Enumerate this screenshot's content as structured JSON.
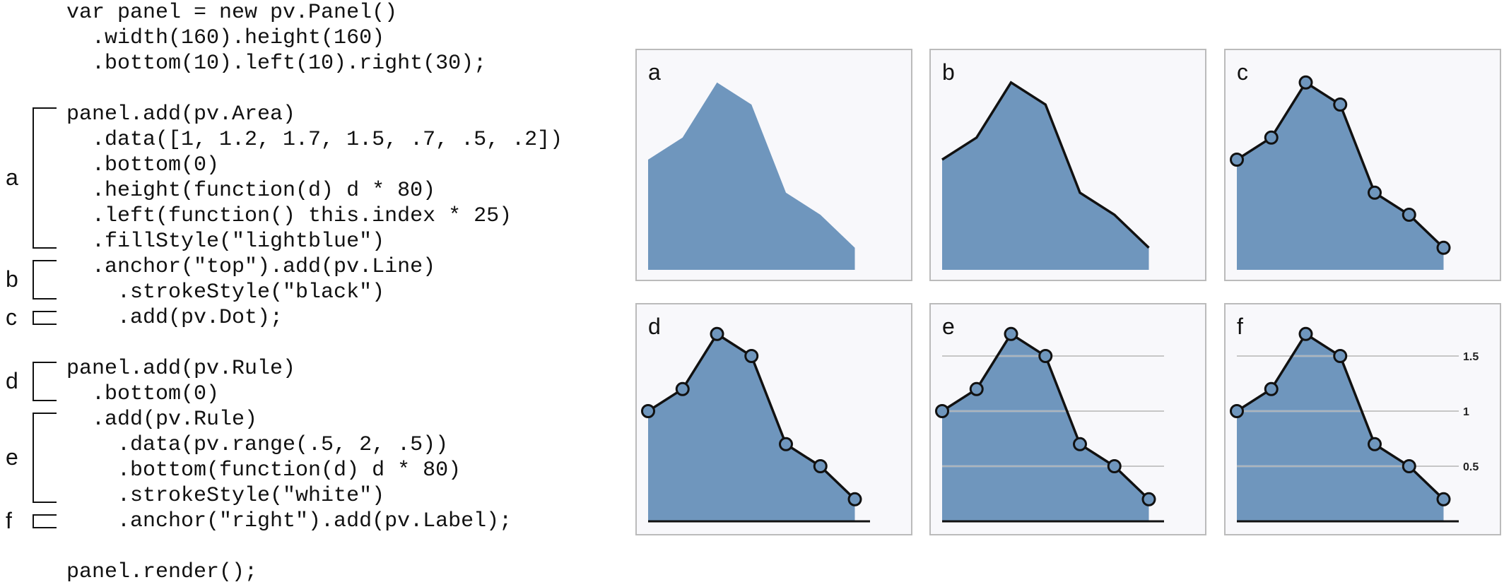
{
  "code": {
    "lines": [
      "var panel = new pv.Panel()",
      "  .width(160).height(160)",
      "  .bottom(10).left(10).right(30);",
      "",
      "panel.add(pv.Area)",
      "  .data([1, 1.2, 1.7, 1.5, .7, .5, .2])",
      "  .bottom(0)",
      "  .height(function(d) d * 80)",
      "  .left(function() this.index * 25)",
      "  .fillStyle(\"lightblue\")",
      "  .anchor(\"top\").add(pv.Line)",
      "    .strokeStyle(\"black\")",
      "    .add(pv.Dot);",
      "",
      "panel.add(pv.Rule)",
      "  .bottom(0)",
      "  .add(pv.Rule)",
      "    .data(pv.range(.5, 2, .5))",
      "    .bottom(function(d) d * 80)",
      "    .strokeStyle(\"white\")",
      "    .anchor(\"right\").add(pv.Label);",
      "",
      "panel.render();"
    ]
  },
  "brackets": [
    {
      "label": "a",
      "from_line": 4,
      "to_line": 9
    },
    {
      "label": "b",
      "from_line": 10,
      "to_line": 11
    },
    {
      "label": "c",
      "from_line": 12,
      "to_line": 12
    },
    {
      "label": "d",
      "from_line": 14,
      "to_line": 15
    },
    {
      "label": "e",
      "from_line": 16,
      "to_line": 19
    },
    {
      "label": "f",
      "from_line": 20,
      "to_line": 20
    }
  ],
  "panels": [
    {
      "label": "a",
      "line": false,
      "dots": false,
      "baseline": false,
      "rules": false,
      "rule_labels": false
    },
    {
      "label": "b",
      "line": true,
      "dots": false,
      "baseline": false,
      "rules": false,
      "rule_labels": false
    },
    {
      "label": "c",
      "line": true,
      "dots": true,
      "baseline": false,
      "rules": false,
      "rule_labels": false
    },
    {
      "label": "d",
      "line": true,
      "dots": true,
      "baseline": true,
      "rules": false,
      "rule_labels": false
    },
    {
      "label": "e",
      "line": true,
      "dots": true,
      "baseline": true,
      "rules": true,
      "rule_labels": false
    },
    {
      "label": "f",
      "line": true,
      "dots": true,
      "baseline": true,
      "rules": true,
      "rule_labels": true
    }
  ],
  "area_data": [
    1,
    1.2,
    1.7,
    1.5,
    0.7,
    0.5,
    0.2
  ],
  "rule_values": [
    0.5,
    1,
    1.5
  ],
  "rule_labels": [
    "0.5",
    "1",
    "1.5"
  ],
  "colors": {
    "area_fill": "#6f96bd",
    "line": "#111111",
    "dot_fill": "#6f96bd",
    "rule": "#ffffff",
    "panel_border": "#bbbbbb",
    "panel_bg": "#f8f8fb"
  }
}
